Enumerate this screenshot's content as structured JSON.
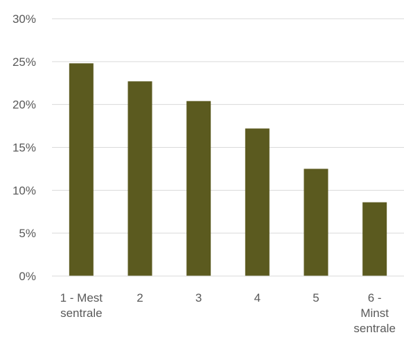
{
  "chart_data": {
    "type": "bar",
    "categories": [
      [
        "1 - Mest",
        "sentrale"
      ],
      [
        "2"
      ],
      [
        "3"
      ],
      [
        "4"
      ],
      [
        "5"
      ],
      [
        "6 -",
        "Minst",
        "sentrale"
      ]
    ],
    "values": [
      24.8,
      22.7,
      20.4,
      17.2,
      12.5,
      8.6
    ],
    "ylim": [
      0,
      30
    ],
    "yticks": [
      0,
      5,
      10,
      15,
      20,
      25,
      30
    ],
    "ytick_format": "{v}%",
    "title": "",
    "xlabel": "",
    "ylabel": "",
    "grid": true,
    "bar_color": "#5b5a1f",
    "grid_color": "#d9d9d9",
    "text_color": "#595959"
  }
}
